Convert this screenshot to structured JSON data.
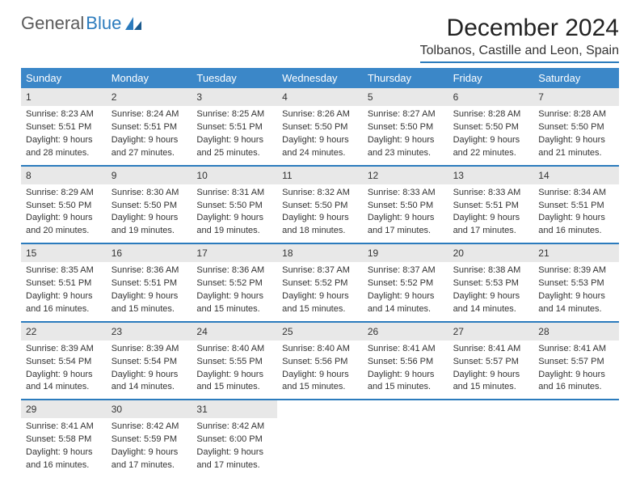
{
  "brand": {
    "word1": "General",
    "word2": "Blue"
  },
  "title": "December 2024",
  "location": "Tolbanos, Castille and Leon, Spain",
  "colors": {
    "header_bg": "#3b87c8",
    "rule": "#2b7bbd",
    "daynum_bg": "#e8e8e8",
    "text": "#333333",
    "page_bg": "#ffffff"
  },
  "day_headers": [
    "Sunday",
    "Monday",
    "Tuesday",
    "Wednesday",
    "Thursday",
    "Friday",
    "Saturday"
  ],
  "weeks": [
    [
      {
        "n": "1",
        "sr": "Sunrise: 8:23 AM",
        "ss": "Sunset: 5:51 PM",
        "d1": "Daylight: 9 hours",
        "d2": "and 28 minutes."
      },
      {
        "n": "2",
        "sr": "Sunrise: 8:24 AM",
        "ss": "Sunset: 5:51 PM",
        "d1": "Daylight: 9 hours",
        "d2": "and 27 minutes."
      },
      {
        "n": "3",
        "sr": "Sunrise: 8:25 AM",
        "ss": "Sunset: 5:51 PM",
        "d1": "Daylight: 9 hours",
        "d2": "and 25 minutes."
      },
      {
        "n": "4",
        "sr": "Sunrise: 8:26 AM",
        "ss": "Sunset: 5:50 PM",
        "d1": "Daylight: 9 hours",
        "d2": "and 24 minutes."
      },
      {
        "n": "5",
        "sr": "Sunrise: 8:27 AM",
        "ss": "Sunset: 5:50 PM",
        "d1": "Daylight: 9 hours",
        "d2": "and 23 minutes."
      },
      {
        "n": "6",
        "sr": "Sunrise: 8:28 AM",
        "ss": "Sunset: 5:50 PM",
        "d1": "Daylight: 9 hours",
        "d2": "and 22 minutes."
      },
      {
        "n": "7",
        "sr": "Sunrise: 8:28 AM",
        "ss": "Sunset: 5:50 PM",
        "d1": "Daylight: 9 hours",
        "d2": "and 21 minutes."
      }
    ],
    [
      {
        "n": "8",
        "sr": "Sunrise: 8:29 AM",
        "ss": "Sunset: 5:50 PM",
        "d1": "Daylight: 9 hours",
        "d2": "and 20 minutes."
      },
      {
        "n": "9",
        "sr": "Sunrise: 8:30 AM",
        "ss": "Sunset: 5:50 PM",
        "d1": "Daylight: 9 hours",
        "d2": "and 19 minutes."
      },
      {
        "n": "10",
        "sr": "Sunrise: 8:31 AM",
        "ss": "Sunset: 5:50 PM",
        "d1": "Daylight: 9 hours",
        "d2": "and 19 minutes."
      },
      {
        "n": "11",
        "sr": "Sunrise: 8:32 AM",
        "ss": "Sunset: 5:50 PM",
        "d1": "Daylight: 9 hours",
        "d2": "and 18 minutes."
      },
      {
        "n": "12",
        "sr": "Sunrise: 8:33 AM",
        "ss": "Sunset: 5:50 PM",
        "d1": "Daylight: 9 hours",
        "d2": "and 17 minutes."
      },
      {
        "n": "13",
        "sr": "Sunrise: 8:33 AM",
        "ss": "Sunset: 5:51 PM",
        "d1": "Daylight: 9 hours",
        "d2": "and 17 minutes."
      },
      {
        "n": "14",
        "sr": "Sunrise: 8:34 AM",
        "ss": "Sunset: 5:51 PM",
        "d1": "Daylight: 9 hours",
        "d2": "and 16 minutes."
      }
    ],
    [
      {
        "n": "15",
        "sr": "Sunrise: 8:35 AM",
        "ss": "Sunset: 5:51 PM",
        "d1": "Daylight: 9 hours",
        "d2": "and 16 minutes."
      },
      {
        "n": "16",
        "sr": "Sunrise: 8:36 AM",
        "ss": "Sunset: 5:51 PM",
        "d1": "Daylight: 9 hours",
        "d2": "and 15 minutes."
      },
      {
        "n": "17",
        "sr": "Sunrise: 8:36 AM",
        "ss": "Sunset: 5:52 PM",
        "d1": "Daylight: 9 hours",
        "d2": "and 15 minutes."
      },
      {
        "n": "18",
        "sr": "Sunrise: 8:37 AM",
        "ss": "Sunset: 5:52 PM",
        "d1": "Daylight: 9 hours",
        "d2": "and 15 minutes."
      },
      {
        "n": "19",
        "sr": "Sunrise: 8:37 AM",
        "ss": "Sunset: 5:52 PM",
        "d1": "Daylight: 9 hours",
        "d2": "and 14 minutes."
      },
      {
        "n": "20",
        "sr": "Sunrise: 8:38 AM",
        "ss": "Sunset: 5:53 PM",
        "d1": "Daylight: 9 hours",
        "d2": "and 14 minutes."
      },
      {
        "n": "21",
        "sr": "Sunrise: 8:39 AM",
        "ss": "Sunset: 5:53 PM",
        "d1": "Daylight: 9 hours",
        "d2": "and 14 minutes."
      }
    ],
    [
      {
        "n": "22",
        "sr": "Sunrise: 8:39 AM",
        "ss": "Sunset: 5:54 PM",
        "d1": "Daylight: 9 hours",
        "d2": "and 14 minutes."
      },
      {
        "n": "23",
        "sr": "Sunrise: 8:39 AM",
        "ss": "Sunset: 5:54 PM",
        "d1": "Daylight: 9 hours",
        "d2": "and 14 minutes."
      },
      {
        "n": "24",
        "sr": "Sunrise: 8:40 AM",
        "ss": "Sunset: 5:55 PM",
        "d1": "Daylight: 9 hours",
        "d2": "and 15 minutes."
      },
      {
        "n": "25",
        "sr": "Sunrise: 8:40 AM",
        "ss": "Sunset: 5:56 PM",
        "d1": "Daylight: 9 hours",
        "d2": "and 15 minutes."
      },
      {
        "n": "26",
        "sr": "Sunrise: 8:41 AM",
        "ss": "Sunset: 5:56 PM",
        "d1": "Daylight: 9 hours",
        "d2": "and 15 minutes."
      },
      {
        "n": "27",
        "sr": "Sunrise: 8:41 AM",
        "ss": "Sunset: 5:57 PM",
        "d1": "Daylight: 9 hours",
        "d2": "and 15 minutes."
      },
      {
        "n": "28",
        "sr": "Sunrise: 8:41 AM",
        "ss": "Sunset: 5:57 PM",
        "d1": "Daylight: 9 hours",
        "d2": "and 16 minutes."
      }
    ],
    [
      {
        "n": "29",
        "sr": "Sunrise: 8:41 AM",
        "ss": "Sunset: 5:58 PM",
        "d1": "Daylight: 9 hours",
        "d2": "and 16 minutes."
      },
      {
        "n": "30",
        "sr": "Sunrise: 8:42 AM",
        "ss": "Sunset: 5:59 PM",
        "d1": "Daylight: 9 hours",
        "d2": "and 17 minutes."
      },
      {
        "n": "31",
        "sr": "Sunrise: 8:42 AM",
        "ss": "Sunset: 6:00 PM",
        "d1": "Daylight: 9 hours",
        "d2": "and 17 minutes."
      },
      null,
      null,
      null,
      null
    ]
  ]
}
